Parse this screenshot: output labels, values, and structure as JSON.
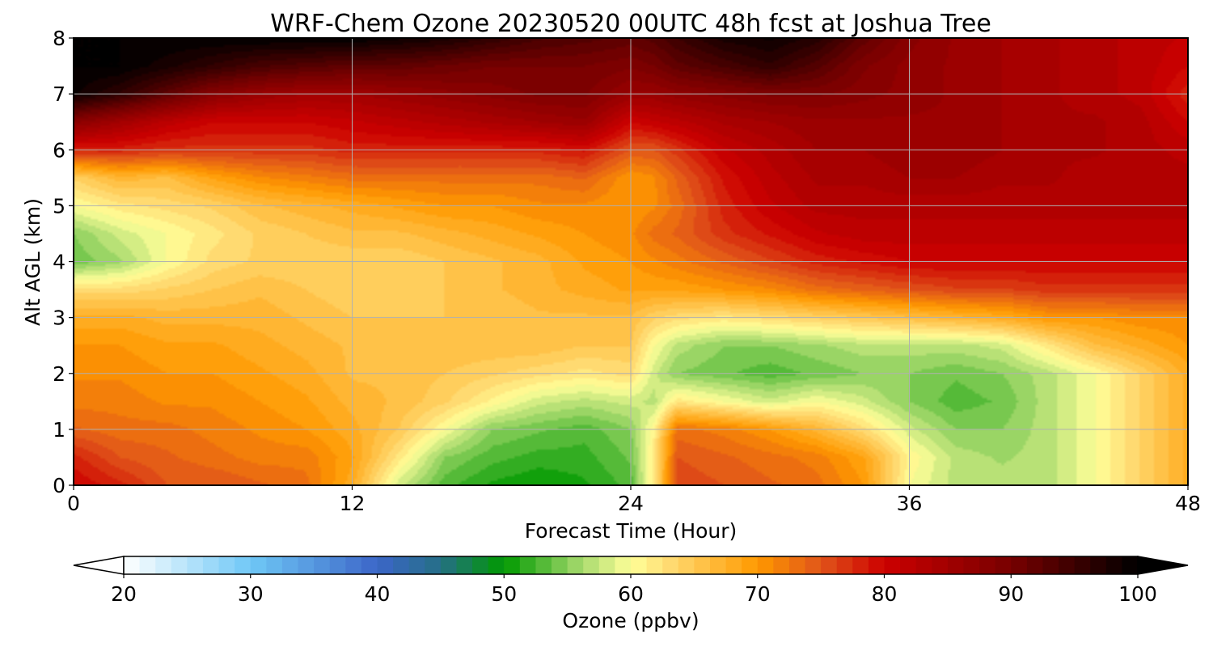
{
  "chart_data": {
    "type": "heatmap",
    "title": "WRF-Chem Ozone  20230520 00UTC 48h fcst at Joshua Tree",
    "xlabel": "Forecast Time (Hour)",
    "ylabel": "Alt AGL (km)",
    "xlim": [
      0,
      48
    ],
    "ylim": [
      0,
      8
    ],
    "x_ticks": [
      "0",
      "12",
      "24",
      "36",
      "48"
    ],
    "y_ticks": [
      "0",
      "1",
      "2",
      "3",
      "4",
      "5",
      "6",
      "7",
      "8"
    ],
    "grid": true,
    "colorbar": {
      "label": "Ozone  (ppbv)",
      "range": [
        20,
        100
      ],
      "extend": "both",
      "ticks": [
        "20",
        "30",
        "40",
        "50",
        "60",
        "70",
        "80",
        "90",
        "100"
      ],
      "stops": [
        {
          "v": 20,
          "color": "#ffffff"
        },
        {
          "v": 30,
          "color": "#6fc8f6"
        },
        {
          "v": 40,
          "color": "#3c66c8"
        },
        {
          "v": 45,
          "color": "#256f86"
        },
        {
          "v": 50,
          "color": "#009900"
        },
        {
          "v": 56,
          "color": "#a4d96c"
        },
        {
          "v": 60,
          "color": "#ffff99"
        },
        {
          "v": 63,
          "color": "#ffdb73"
        },
        {
          "v": 70,
          "color": "#ff9900"
        },
        {
          "v": 75,
          "color": "#e0541a"
        },
        {
          "v": 80,
          "color": "#cc0000"
        },
        {
          "v": 90,
          "color": "#770000"
        },
        {
          "v": 100,
          "color": "#000000"
        }
      ]
    },
    "x_hours": [
      0,
      2,
      4,
      6,
      8,
      10,
      12,
      14,
      16,
      18,
      20,
      22,
      24,
      25,
      26,
      28,
      30,
      32,
      34,
      36,
      38,
      40,
      42,
      44,
      46,
      48
    ],
    "y_km": [
      0,
      0.5,
      1,
      1.5,
      2,
      2.5,
      3,
      3.5,
      4,
      4.5,
      5,
      5.5,
      6,
      6.5,
      7,
      7.5,
      8
    ],
    "ozone_ppbv": [
      [
        80,
        78,
        75,
        75,
        74,
        73,
        68,
        58,
        53,
        51,
        50,
        51,
        53,
        62,
        76,
        75,
        74,
        73,
        70,
        60,
        57,
        57,
        57,
        60,
        64,
        68
      ],
      [
        78,
        75,
        74,
        73,
        72,
        72,
        69,
        62,
        55,
        53,
        52,
        52,
        54,
        62,
        75,
        74,
        73,
        72,
        69,
        61,
        57,
        56,
        57,
        60,
        64,
        68
      ],
      [
        74,
        73,
        73,
        72,
        71,
        70,
        68,
        65,
        60,
        55,
        54,
        53,
        55,
        61,
        73,
        72,
        70,
        67,
        63,
        58,
        55,
        55,
        57,
        60,
        64,
        68
      ],
      [
        72,
        72,
        71,
        71,
        70,
        69,
        67,
        66,
        64,
        61,
        58,
        57,
        58,
        57,
        62,
        60,
        58,
        60,
        58,
        55,
        53,
        54,
        57,
        60,
        64,
        68
      ],
      [
        71,
        71,
        70,
        70,
        69,
        68,
        66,
        66,
        65,
        64,
        63,
        62,
        63,
        58,
        55,
        54,
        53,
        54,
        55,
        55,
        54,
        55,
        57,
        60,
        64,
        68
      ],
      [
        70,
        70,
        69,
        69,
        68,
        67,
        66,
        66,
        66,
        66,
        66,
        65,
        65,
        60,
        57,
        55,
        55,
        56,
        57,
        57,
        57,
        58,
        62,
        66,
        68,
        70
      ],
      [
        68,
        68,
        67,
        67,
        67,
        66,
        65,
        65,
        65,
        65,
        66,
        66,
        66,
        64,
        63,
        62,
        63,
        64,
        65,
        66,
        67,
        68,
        70,
        70,
        71,
        71
      ],
      [
        63,
        63,
        64,
        65,
        66,
        65,
        64,
        64,
        65,
        66,
        67,
        68,
        69,
        69,
        69,
        70,
        71,
        73,
        74,
        75,
        76,
        76,
        77,
        77,
        77,
        77
      ],
      [
        54,
        56,
        60,
        63,
        64,
        64,
        64,
        64,
        65,
        66,
        67,
        69,
        70,
        71,
        72,
        74,
        76,
        78,
        79,
        80,
        80,
        80,
        80,
        80,
        80,
        80
      ],
      [
        55,
        58,
        60,
        62,
        64,
        65,
        66,
        66,
        67,
        68,
        69,
        70,
        71,
        73,
        74,
        77,
        79,
        81,
        82,
        82,
        82,
        82,
        82,
        82,
        82,
        82
      ],
      [
        60,
        62,
        63,
        64,
        66,
        67,
        68,
        69,
        70,
        70,
        71,
        71,
        70,
        71,
        73,
        78,
        81,
        83,
        83,
        83,
        83,
        83,
        83,
        83,
        83,
        83
      ],
      [
        64,
        67,
        66,
        69,
        71,
        72,
        73,
        73,
        73,
        73,
        73,
        74,
        70,
        71,
        74,
        79,
        82,
        84,
        84,
        85,
        85,
        84,
        84,
        83,
        83,
        83
      ],
      [
        78,
        78,
        77,
        77,
        77,
        77,
        78,
        78,
        78,
        78,
        78,
        79,
        75,
        75,
        77,
        81,
        83,
        85,
        85,
        86,
        86,
        85,
        84,
        84,
        83,
        82
      ],
      [
        88,
        85,
        82,
        80,
        80,
        80,
        81,
        82,
        83,
        84,
        85,
        86,
        80,
        81,
        82,
        84,
        85,
        86,
        86,
        86,
        86,
        85,
        84,
        84,
        83,
        80
      ],
      [
        99,
        96,
        92,
        88,
        86,
        85,
        85,
        86,
        87,
        88,
        89,
        89,
        86,
        86,
        87,
        88,
        89,
        89,
        88,
        87,
        86,
        85,
        84,
        83,
        82,
        78
      ],
      [
        100,
        100,
        98,
        96,
        94,
        93,
        92,
        92,
        91,
        90,
        90,
        90,
        89,
        90,
        92,
        94,
        96,
        93,
        89,
        87,
        86,
        85,
        84,
        83,
        82,
        80
      ],
      [
        100,
        100,
        100,
        100,
        100,
        100,
        100,
        99,
        98,
        96,
        94,
        93,
        92,
        93,
        95,
        98,
        99,
        97,
        92,
        88,
        86,
        85,
        84,
        83,
        82,
        81
      ]
    ]
  }
}
